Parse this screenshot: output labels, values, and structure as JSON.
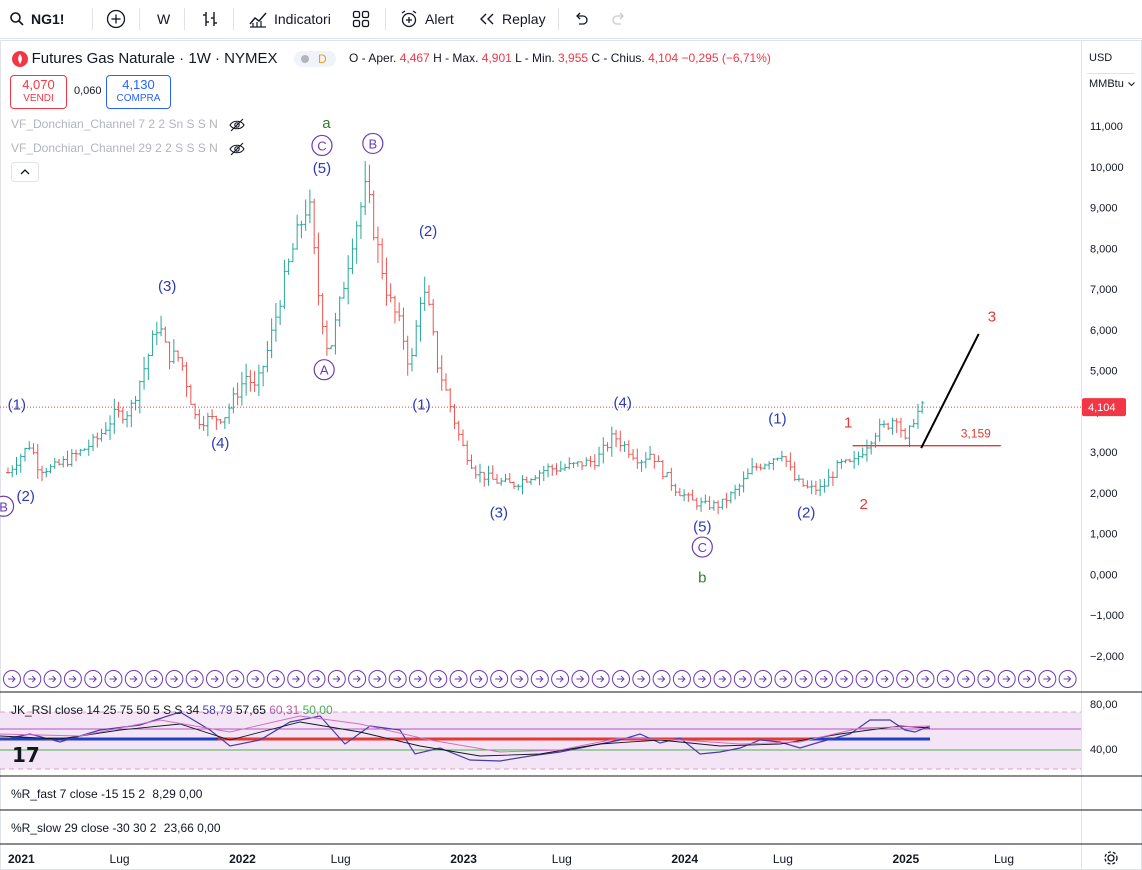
{
  "toolbar": {
    "symbol": "NG1!",
    "interval": "W",
    "indicators_label": "Indicatori",
    "alert_label": "Alert",
    "replay_label": "Replay"
  },
  "header": {
    "title": "Futures Gas Naturale · 1W · NYMEX",
    "delayed_badge": "D",
    "open_label": "O - Aper.",
    "open": "4,467",
    "high_label": "H - Max.",
    "high": "4,901",
    "low_label": "L - Min.",
    "low": "3,955",
    "close_label": "C - Chius.",
    "close": "4,104",
    "change": "−0,295 (−6,71%)",
    "sell_price": "4,070",
    "sell_label": "VENDI",
    "spread": "0,060",
    "buy_price": "4,130",
    "buy_label": "COMPRA"
  },
  "indicators": [
    {
      "label": "VF_Donchian_Channel 7 2 2 Sn S S N"
    },
    {
      "label": "VF_Donchian_Channel 29 2 2 S S S N"
    }
  ],
  "scale": {
    "currency": "USD",
    "unit": "MMBtu"
  },
  "panels": {
    "rsi": {
      "label": "JK_RSI close 14 25 75 50 5 S S 34",
      "v1": "58,79",
      "v2": "57,65",
      "v3": "60,31",
      "v4": "50,00",
      "ticks": [
        "80,00",
        "40,00"
      ]
    },
    "rfast": {
      "label": "%R_fast 7 close -15 15 2",
      "v1": "8,29",
      "v2": "0,00"
    },
    "rslow": {
      "label": "%R_slow 29 close -30 30 2",
      "v1": "23,66",
      "v2": "0,00"
    }
  },
  "colors": {
    "up": "#26a69a",
    "down": "#ef5350",
    "wave_blue": "#2a3ab8",
    "wave_purple": "#6c3bb5",
    "wave_green": "#2e7d32",
    "wave_red": "#e53935",
    "rsi_band": "#f3e5f5"
  },
  "chart_data": {
    "type": "candlestick",
    "title": "Futures Gas Naturale · 1W · NYMEX",
    "ylim": [
      -2.4,
      12.0
    ],
    "y_ticks": [
      "11,000",
      "10,000",
      "9,000",
      "8,000",
      "7,000",
      "6,000",
      "5,000",
      "4,000",
      "3,000",
      "2,000",
      "1,000",
      "0,000",
      "−1,000",
      "−2,000"
    ],
    "y_tick_values": [
      11,
      10,
      9,
      8,
      7,
      6,
      5,
      4,
      3,
      2,
      1,
      0,
      -1,
      -2
    ],
    "x_ticks": [
      {
        "label": "2021",
        "t": 2021.0
      },
      {
        "label": "Lug",
        "t": 2021.5
      },
      {
        "label": "2022",
        "t": 2022.0
      },
      {
        "label": "Lug",
        "t": 2022.5
      },
      {
        "label": "2023",
        "t": 2023.0
      },
      {
        "label": "Lug",
        "t": 2023.5
      },
      {
        "label": "2024",
        "t": 2024.0
      },
      {
        "label": "Lug",
        "t": 2024.5
      },
      {
        "label": "2025",
        "t": 2025.0
      },
      {
        "label": "Lug",
        "t": 2025.5
      }
    ],
    "price_path": [
      [
        2021.0,
        2.5
      ],
      [
        2021.04,
        2.8
      ],
      [
        2021.1,
        3.2
      ],
      [
        2021.14,
        2.6
      ],
      [
        2021.2,
        2.6
      ],
      [
        2021.3,
        2.9
      ],
      [
        2021.4,
        3.3
      ],
      [
        2021.48,
        3.9
      ],
      [
        2021.55,
        4.0
      ],
      [
        2021.63,
        5.3
      ],
      [
        2021.68,
        6.2
      ],
      [
        2021.72,
        5.4
      ],
      [
        2021.78,
        5.3
      ],
      [
        2021.85,
        3.8
      ],
      [
        2021.92,
        3.8
      ],
      [
        2021.98,
        3.9
      ],
      [
        2022.08,
        4.9
      ],
      [
        2022.12,
        4.5
      ],
      [
        2022.18,
        5.6
      ],
      [
        2022.24,
        7.0
      ],
      [
        2022.3,
        8.2
      ],
      [
        2022.36,
        9.2
      ],
      [
        2022.4,
        7.0
      ],
      [
        2022.45,
        5.4
      ],
      [
        2022.5,
        6.6
      ],
      [
        2022.56,
        8.3
      ],
      [
        2022.62,
        9.5
      ],
      [
        2022.66,
        8.3
      ],
      [
        2022.72,
        6.8
      ],
      [
        2022.78,
        6.0
      ],
      [
        2022.82,
        5.0
      ],
      [
        2022.87,
        7.0
      ],
      [
        2022.9,
        6.6
      ],
      [
        2022.94,
        5.2
      ],
      [
        2022.98,
        4.5
      ],
      [
        2023.05,
        3.2
      ],
      [
        2023.12,
        2.5
      ],
      [
        2023.2,
        2.3
      ],
      [
        2023.28,
        2.2
      ],
      [
        2023.36,
        2.4
      ],
      [
        2023.44,
        2.6
      ],
      [
        2023.5,
        2.6
      ],
      [
        2023.58,
        2.7
      ],
      [
        2023.66,
        2.8
      ],
      [
        2023.74,
        3.4
      ],
      [
        2023.8,
        3.1
      ],
      [
        2023.86,
        2.8
      ],
      [
        2023.91,
        3.0
      ],
      [
        2023.95,
        2.6
      ],
      [
        2024.02,
        2.1
      ],
      [
        2024.09,
        1.8
      ],
      [
        2024.15,
        1.7
      ],
      [
        2024.22,
        1.7
      ],
      [
        2024.3,
        2.1
      ],
      [
        2024.37,
        2.6
      ],
      [
        2024.44,
        2.8
      ],
      [
        2024.5,
        3.0
      ],
      [
        2024.56,
        2.3
      ],
      [
        2024.62,
        2.1
      ],
      [
        2024.68,
        2.1
      ],
      [
        2024.76,
        2.7
      ],
      [
        2024.82,
        2.7
      ],
      [
        2024.86,
        3.0
      ],
      [
        2024.92,
        3.5
      ],
      [
        2024.96,
        3.6
      ],
      [
        2025.02,
        3.9
      ],
      [
        2025.06,
        3.2
      ],
      [
        2025.1,
        3.9
      ],
      [
        2025.14,
        4.1
      ]
    ],
    "annotations": [
      {
        "text": "(1)",
        "t": 2021.04,
        "y": 4.05,
        "color": "blue"
      },
      {
        "text": "(2)",
        "t": 2021.08,
        "y": 1.8,
        "color": "blue"
      },
      {
        "text": "B",
        "t": 2020.98,
        "y": 1.55,
        "color": "purple",
        "circled": true
      },
      {
        "text": "(3)",
        "t": 2021.72,
        "y": 6.95,
        "color": "blue"
      },
      {
        "text": "(4)",
        "t": 2021.96,
        "y": 3.1,
        "color": "blue"
      },
      {
        "text": "(5)",
        "t": 2022.42,
        "y": 9.85,
        "color": "blue"
      },
      {
        "text": "C",
        "t": 2022.42,
        "y": 10.4,
        "color": "purple",
        "circled": true
      },
      {
        "text": "a",
        "t": 2022.44,
        "y": 10.95,
        "color": "green"
      },
      {
        "text": "B",
        "t": 2022.65,
        "y": 10.45,
        "color": "purple",
        "circled": true
      },
      {
        "text": "A",
        "t": 2022.43,
        "y": 4.9,
        "color": "purple",
        "circled": true
      },
      {
        "text": "(2)",
        "t": 2022.9,
        "y": 8.3,
        "color": "blue"
      },
      {
        "text": "(1)",
        "t": 2022.87,
        "y": 4.05,
        "color": "blue"
      },
      {
        "text": "(3)",
        "t": 2023.22,
        "y": 1.4,
        "color": "blue"
      },
      {
        "text": "(4)",
        "t": 2023.78,
        "y": 4.1,
        "color": "blue"
      },
      {
        "text": "(5)",
        "t": 2024.14,
        "y": 1.05,
        "color": "blue"
      },
      {
        "text": "C",
        "t": 2024.14,
        "y": 0.55,
        "color": "purple",
        "circled": true
      },
      {
        "text": "b",
        "t": 2024.14,
        "y": -0.2,
        "color": "green"
      },
      {
        "text": "(1)",
        "t": 2024.48,
        "y": 3.7,
        "color": "blue"
      },
      {
        "text": "(2)",
        "t": 2024.61,
        "y": 1.4,
        "color": "blue"
      },
      {
        "text": "1",
        "t": 2024.8,
        "y": 3.6,
        "color": "red"
      },
      {
        "text": "2",
        "t": 2024.87,
        "y": 1.6,
        "color": "red"
      },
      {
        "text": "3",
        "t": 2025.45,
        "y": 6.2,
        "color": "red"
      }
    ],
    "horizontal_line": {
      "value": 3.159,
      "label": "3,159",
      "from_t": 2024.82,
      "to_t": 2025.49
    },
    "projection": {
      "from": [
        2025.13,
        3.1
      ],
      "to": [
        2025.39,
        5.9
      ]
    },
    "last_price": {
      "value": 4.104,
      "label": "4,104"
    }
  }
}
